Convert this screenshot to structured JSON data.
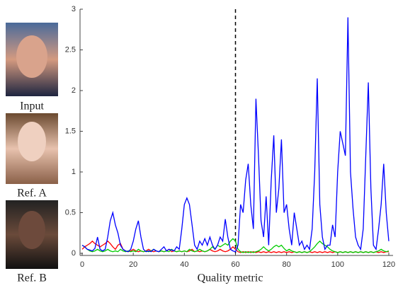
{
  "images": [
    {
      "label": "Input"
    },
    {
      "label": "Ref. A"
    },
    {
      "label": "Ref. B"
    }
  ],
  "chart_data": {
    "type": "line",
    "xlabel": "Quality metric",
    "xlim": [
      0,
      120
    ],
    "xticks": [
      0,
      20,
      40,
      60,
      80,
      100,
      120
    ],
    "ylim": [
      0,
      3
    ],
    "yticks": [
      0,
      0.5,
      1,
      1.5,
      2,
      2.5,
      3
    ],
    "vline_x": 60,
    "grid": false,
    "x": [
      0,
      1,
      2,
      3,
      4,
      5,
      6,
      7,
      8,
      9,
      10,
      11,
      12,
      13,
      14,
      15,
      16,
      17,
      18,
      19,
      20,
      21,
      22,
      23,
      24,
      25,
      26,
      27,
      28,
      29,
      30,
      31,
      32,
      33,
      34,
      35,
      36,
      37,
      38,
      39,
      40,
      41,
      42,
      43,
      44,
      45,
      46,
      47,
      48,
      49,
      50,
      51,
      52,
      53,
      54,
      55,
      56,
      57,
      58,
      59,
      60,
      61,
      62,
      63,
      64,
      65,
      66,
      67,
      68,
      69,
      70,
      71,
      72,
      73,
      74,
      75,
      76,
      77,
      78,
      79,
      80,
      81,
      82,
      83,
      84,
      85,
      86,
      87,
      88,
      89,
      90,
      91,
      92,
      93,
      94,
      95,
      96,
      97,
      98,
      99,
      100,
      101,
      102,
      103,
      104,
      105,
      106,
      107,
      108,
      109,
      110,
      111,
      112,
      113,
      114,
      115,
      116,
      117,
      118,
      119,
      120
    ],
    "series": [
      {
        "color": "#ff0000",
        "values": [
          0.05,
          0.08,
          0.1,
          0.12,
          0.15,
          0.12,
          0.1,
          0.08,
          0.1,
          0.12,
          0.15,
          0.12,
          0.08,
          0.05,
          0.1,
          0.12,
          0.05,
          0.03,
          0.02,
          0.03,
          0.05,
          0.03,
          0.02,
          0.03,
          0.02,
          0.03,
          0.05,
          0.03,
          0.02,
          0.03,
          0.02,
          0.03,
          0.02,
          0.03,
          0.05,
          0.02,
          0.03,
          0.02,
          0.03,
          0.02,
          0.03,
          0.02,
          0.03,
          0.05,
          0.02,
          0.03,
          0.02,
          0.03,
          0.02,
          0.03,
          0.05,
          0.03,
          0.02,
          0.03,
          0.05,
          0.03,
          0.02,
          0.03,
          0.05,
          0.08,
          0.05,
          0.02,
          0.01,
          0.02,
          0.01,
          0.02,
          0.01,
          0.02,
          0.01,
          0.02,
          0.01,
          0.02,
          0.01,
          0.02,
          0.01,
          0.02,
          0.01,
          0.02,
          0.01,
          0.02,
          0.01,
          0.02,
          0.01,
          0.02,
          0.01,
          0.02,
          0.01,
          0.02,
          0.01,
          0.02,
          0.01,
          0.02,
          0.01,
          0.02,
          0.01,
          0.02,
          0.01,
          0.02,
          0.01,
          0.02,
          0.01,
          0.02,
          0.01,
          0.02,
          0.01,
          0.02,
          0.01,
          0.02,
          0.01,
          0.02,
          0.01,
          0.02,
          0.01,
          0.02,
          0.01,
          0.02,
          0.01,
          0.02,
          0.01,
          0.02,
          0.02
        ]
      },
      {
        "color": "#00cc00",
        "values": [
          0.1,
          0.08,
          0.05,
          0.03,
          0.02,
          0.03,
          0.05,
          0.03,
          0.02,
          0.03,
          0.05,
          0.03,
          0.02,
          0.03,
          0.02,
          0.05,
          0.03,
          0.02,
          0.03,
          0.02,
          0.03,
          0.02,
          0.05,
          0.03,
          0.02,
          0.03,
          0.02,
          0.03,
          0.05,
          0.03,
          0.02,
          0.03,
          0.02,
          0.03,
          0.02,
          0.05,
          0.03,
          0.02,
          0.03,
          0.02,
          0.03,
          0.02,
          0.05,
          0.03,
          0.02,
          0.03,
          0.05,
          0.03,
          0.02,
          0.03,
          0.05,
          0.08,
          0.05,
          0.1,
          0.08,
          0.1,
          0.12,
          0.1,
          0.15,
          0.18,
          0.15,
          0.05,
          0.02,
          0.01,
          0.02,
          0.01,
          0.02,
          0.01,
          0.02,
          0.03,
          0.05,
          0.08,
          0.05,
          0.03,
          0.05,
          0.08,
          0.1,
          0.08,
          0.1,
          0.06,
          0.03,
          0.05,
          0.03,
          0.02,
          0.01,
          0.02,
          0.01,
          0.02,
          0.01,
          0.02,
          0.05,
          0.08,
          0.12,
          0.15,
          0.12,
          0.1,
          0.08,
          0.05,
          0.03,
          0.02,
          0.01,
          0.02,
          0.01,
          0.02,
          0.01,
          0.02,
          0.01,
          0.02,
          0.01,
          0.02,
          0.01,
          0.02,
          0.01,
          0.02,
          0.01,
          0.02,
          0.03,
          0.05,
          0.03,
          0.02,
          0.03
        ]
      },
      {
        "color": "#0000ff",
        "values": [
          0.1,
          0.08,
          0.05,
          0.04,
          0.03,
          0.06,
          0.2,
          0.05,
          0.03,
          0.05,
          0.2,
          0.4,
          0.5,
          0.35,
          0.25,
          0.1,
          0.05,
          0.03,
          0.02,
          0.05,
          0.15,
          0.3,
          0.4,
          0.2,
          0.05,
          0.02,
          0.03,
          0.02,
          0.05,
          0.03,
          0.02,
          0.05,
          0.08,
          0.03,
          0.05,
          0.04,
          0.03,
          0.08,
          0.05,
          0.3,
          0.6,
          0.68,
          0.6,
          0.35,
          0.1,
          0.05,
          0.15,
          0.1,
          0.18,
          0.1,
          0.2,
          0.1,
          0.05,
          0.1,
          0.2,
          0.15,
          0.42,
          0.2,
          0.05,
          0.03,
          0.02,
          0.1,
          0.6,
          0.5,
          0.9,
          1.1,
          0.6,
          0.3,
          1.9,
          1.2,
          0.4,
          0.2,
          0.7,
          0.1,
          0.9,
          1.45,
          0.5,
          0.8,
          1.4,
          0.5,
          0.6,
          0.3,
          0.1,
          0.5,
          0.3,
          0.1,
          0.15,
          0.05,
          0.1,
          0.05,
          0.3,
          1.0,
          2.15,
          0.6,
          0.2,
          0.05,
          0.1,
          0.1,
          0.35,
          0.2,
          1.0,
          1.5,
          1.35,
          1.2,
          2.9,
          1.0,
          0.55,
          0.2,
          0.1,
          0.05,
          0.3,
          1.2,
          2.1,
          0.8,
          0.1,
          0.05,
          0.3,
          0.6,
          1.1,
          0.5,
          0.15
        ]
      }
    ]
  }
}
